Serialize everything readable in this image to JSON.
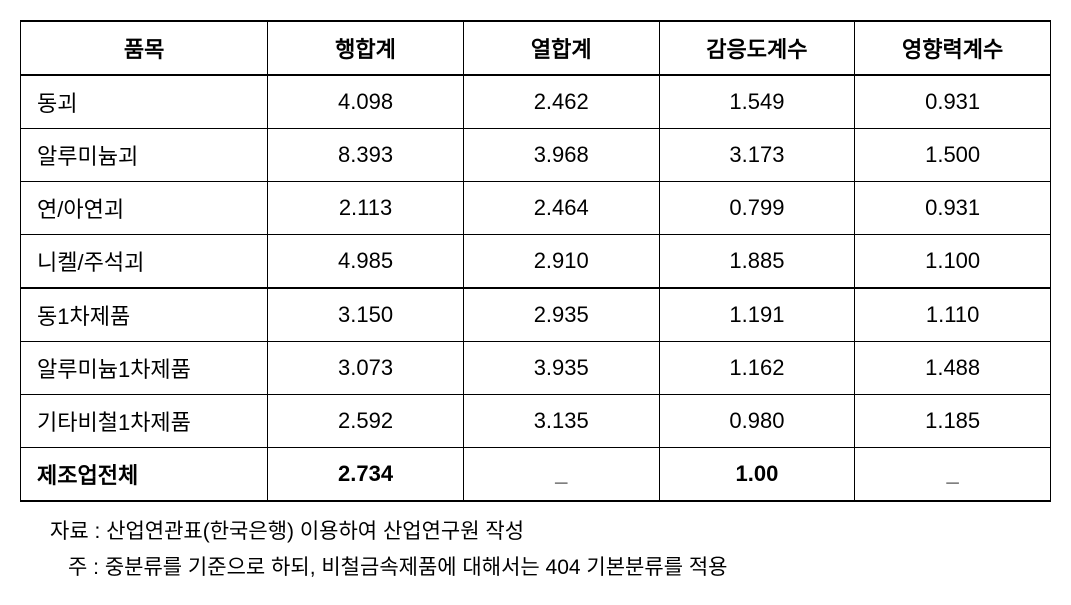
{
  "table": {
    "columns": [
      "품목",
      "행합계",
      "열합계",
      "감응도계수",
      "영향력계수"
    ],
    "column_widths": [
      "24%",
      "19%",
      "19%",
      "19%",
      "19%"
    ],
    "rows": [
      {
        "cells": [
          "동괴",
          "4.098",
          "2.462",
          "1.549",
          "0.931"
        ],
        "section_start": false
      },
      {
        "cells": [
          "알루미늄괴",
          "8.393",
          "3.968",
          "3.173",
          "1.500"
        ],
        "section_start": false
      },
      {
        "cells": [
          "연/아연괴",
          "2.113",
          "2.464",
          "0.799",
          "0.931"
        ],
        "section_start": false
      },
      {
        "cells": [
          "니켈/주석괴",
          "4.985",
          "2.910",
          "1.885",
          "1.100"
        ],
        "section_start": false,
        "section_before": true
      },
      {
        "cells": [
          "동1차제품",
          "3.150",
          "2.935",
          "1.191",
          "1.110"
        ],
        "section_start": true
      },
      {
        "cells": [
          "알루미늄1차제품",
          "3.073",
          "3.935",
          "1.162",
          "1.488"
        ],
        "section_start": false
      },
      {
        "cells": [
          "기타비철1차제품",
          "2.592",
          "3.135",
          "0.980",
          "1.185"
        ],
        "section_start": false
      }
    ],
    "total_row": {
      "cells": [
        "제조업전체",
        "2.734",
        "_",
        "1.00",
        "_"
      ]
    }
  },
  "notes": {
    "line1": "자료 : 산업연관표(한국은행) 이용하여 산업연구원 작성",
    "line2": "주 : 중분류를 기준으로 하되, 비철금속제품에 대해서는 404 기본분류를 적용"
  }
}
